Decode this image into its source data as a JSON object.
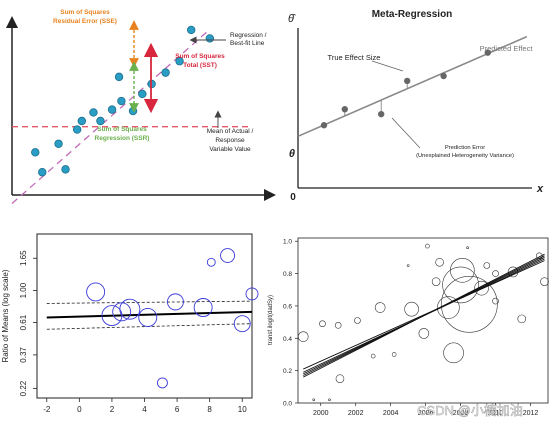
{
  "colors": {
    "accent_orange": "#e8821e",
    "accent_red": "#d7263d",
    "accent_green": "#6ab04c",
    "point_teal": "#2a9dc4",
    "dashed_magenta": "#c36ab8",
    "dashed_red": "#e05a6a",
    "meta_point": "#666666",
    "circle_blue": "#3a3ad8"
  },
  "chart_data": [
    {
      "type": "scatter",
      "title": "",
      "annotations": {
        "sse": [
          "Sum of Squares",
          "Residual Error (SSE)"
        ],
        "sst": [
          "Sum of Squares",
          "Total (SST)"
        ],
        "ssr": [
          "Sum of Squares",
          "Regression (SSR)"
        ],
        "line_label": [
          "Regression /",
          "Best-fit Line"
        ],
        "mean_label": [
          "Mean of Actual /",
          "Response",
          "Variable Value"
        ]
      },
      "points": [
        [
          1.0,
          1.5
        ],
        [
          1.3,
          0.8
        ],
        [
          2.0,
          1.8
        ],
        [
          2.3,
          0.9
        ],
        [
          2.8,
          2.3
        ],
        [
          3.0,
          2.6
        ],
        [
          3.5,
          2.9
        ],
        [
          3.8,
          2.6
        ],
        [
          4.3,
          3.0
        ],
        [
          4.7,
          3.3
        ],
        [
          5.2,
          2.95
        ],
        [
          5.6,
          3.55
        ],
        [
          6.0,
          3.9
        ],
        [
          6.6,
          4.3
        ],
        [
          7.2,
          4.7
        ],
        [
          7.7,
          5.8
        ],
        [
          8.5,
          5.5
        ],
        [
          4.6,
          4.15
        ]
      ],
      "mean_y": 2.4,
      "regression": {
        "intercept": -0.3,
        "slope": 0.72
      },
      "xlim": [
        0,
        11
      ],
      "ylim": [
        0,
        6.5
      ]
    },
    {
      "type": "scatter",
      "title": "Meta-Regression",
      "ylabel": "θ̂",
      "xlabel": "x",
      "origin_label": "0",
      "intercept_label": "θ",
      "annotations": {
        "true_effect": "True Effect Size",
        "predicted": "Predicted Effect",
        "prediction_error": [
          "Prediction Error",
          "(Unexplained Heterogeneity Variance)"
        ]
      },
      "points": [
        [
          1.0,
          2.55
        ],
        [
          1.8,
          3.2
        ],
        [
          3.2,
          3.0
        ],
        [
          4.2,
          4.35
        ],
        [
          5.6,
          4.55
        ],
        [
          7.3,
          5.5
        ]
      ],
      "regression": {
        "intercept": 2.1,
        "slope": 0.46
      },
      "xlim": [
        0,
        9
      ],
      "ylim": [
        0,
        6.5
      ]
    },
    {
      "type": "scatter",
      "ylabel": "Ratio of Means (log scale)",
      "x_ticks": [
        "-2",
        "0",
        "2",
        "4",
        "6",
        "8",
        "10"
      ],
      "y_ticks": [
        "0.22",
        "0.37",
        "0.61",
        "1.00",
        "1.65"
      ],
      "xlim": [
        -2.6,
        10.6
      ],
      "ylim_log": [
        0.19,
        2.4
      ],
      "points": [
        {
          "x": 1.0,
          "y": 0.98,
          "size": 9
        },
        {
          "x": 2.0,
          "y": 0.68,
          "size": 10
        },
        {
          "x": 2.6,
          "y": 0.72,
          "size": 9
        },
        {
          "x": 3.1,
          "y": 0.75,
          "size": 10
        },
        {
          "x": 4.2,
          "y": 0.66,
          "size": 9
        },
        {
          "x": 5.9,
          "y": 0.84,
          "size": 8
        },
        {
          "x": 7.6,
          "y": 0.77,
          "size": 9
        },
        {
          "x": 8.1,
          "y": 1.55,
          "size": 4
        },
        {
          "x": 9.1,
          "y": 1.72,
          "size": 7
        },
        {
          "x": 5.1,
          "y": 0.24,
          "size": 5
        },
        {
          "x": 10.0,
          "y": 0.6,
          "size": 8
        },
        {
          "x": 10.6,
          "y": 0.95,
          "size": 6
        }
      ],
      "fit": {
        "x": [
          -2.0,
          10.6
        ],
        "y": [
          0.66,
          0.72
        ]
      },
      "ci_upper": {
        "x": [
          -2.0,
          10.6
        ],
        "y": [
          0.82,
          0.85
        ]
      },
      "ci_lower": {
        "x": [
          -2.0,
          10.6
        ],
        "y": [
          0.55,
          0.6
        ]
      }
    },
    {
      "type": "scatter",
      "ylabel": "transf.ilogit(dadSy)",
      "x_ticks": [
        "2000",
        "2002",
        "2004",
        "2006",
        "2008",
        "2010",
        "2012"
      ],
      "y_ticks": [
        "0.0",
        "0.2",
        "0.4",
        "0.6",
        "0.8",
        "1.0"
      ],
      "xlim": [
        1998.7,
        2013.0
      ],
      "ylim": [
        0.0,
        1.02
      ],
      "points": [
        {
          "x": 1999.0,
          "y": 0.41,
          "size": 5
        },
        {
          "x": 2000.1,
          "y": 0.49,
          "size": 3
        },
        {
          "x": 2001.0,
          "y": 0.48,
          "size": 3
        },
        {
          "x": 2001.1,
          "y": 0.15,
          "size": 4
        },
        {
          "x": 2002.1,
          "y": 0.51,
          "size": 3
        },
        {
          "x": 2003.4,
          "y": 0.59,
          "size": 5
        },
        {
          "x": 2003.0,
          "y": 0.29,
          "size": 2
        },
        {
          "x": 2004.2,
          "y": 0.3,
          "size": 2
        },
        {
          "x": 2005.2,
          "y": 0.58,
          "size": 7
        },
        {
          "x": 2005.9,
          "y": 0.43,
          "size": 5
        },
        {
          "x": 2006.1,
          "y": 0.97,
          "size": 2
        },
        {
          "x": 2006.6,
          "y": 0.75,
          "size": 4
        },
        {
          "x": 2006.8,
          "y": 0.87,
          "size": 4
        },
        {
          "x": 2007.3,
          "y": 0.59,
          "size": 11
        },
        {
          "x": 2007.6,
          "y": 0.31,
          "size": 10
        },
        {
          "x": 2008.0,
          "y": 0.73,
          "size": 18
        },
        {
          "x": 2008.1,
          "y": 0.82,
          "size": 12
        },
        {
          "x": 2008.5,
          "y": 0.61,
          "size": 28
        },
        {
          "x": 2009.2,
          "y": 0.71,
          "size": 7
        },
        {
          "x": 2009.5,
          "y": 0.85,
          "size": 3
        },
        {
          "x": 2010.0,
          "y": 0.8,
          "size": 3
        },
        {
          "x": 2011.0,
          "y": 0.81,
          "size": 5
        },
        {
          "x": 2011.5,
          "y": 0.52,
          "size": 4
        },
        {
          "x": 2012.5,
          "y": 0.91,
          "size": 3
        },
        {
          "x": 2012.8,
          "y": 0.75,
          "size": 4
        },
        {
          "x": 2010.0,
          "y": 0.63,
          "size": 3
        },
        {
          "x": 2005.0,
          "y": 0.85,
          "size": 1
        },
        {
          "x": 2008.4,
          "y": 0.96,
          "size": 1
        },
        {
          "x": 1999.6,
          "y": 0.02,
          "size": 1
        },
        {
          "x": 2000.5,
          "y": 0.02,
          "size": 1
        }
      ],
      "fit_lines": [
        {
          "x": [
            1999.0,
            2012.8
          ],
          "y": [
            0.16,
            0.92
          ]
        },
        {
          "x": [
            1999.0,
            2012.8
          ],
          "y": [
            0.17,
            0.91
          ]
        },
        {
          "x": [
            1999.0,
            2012.8
          ],
          "y": [
            0.18,
            0.9
          ]
        },
        {
          "x": [
            1999.0,
            2012.8
          ],
          "y": [
            0.19,
            0.89
          ]
        },
        {
          "x": [
            1999.0,
            2012.8
          ],
          "y": [
            0.21,
            0.88
          ]
        }
      ]
    }
  ],
  "watermark": "CSDN @小楠加油"
}
